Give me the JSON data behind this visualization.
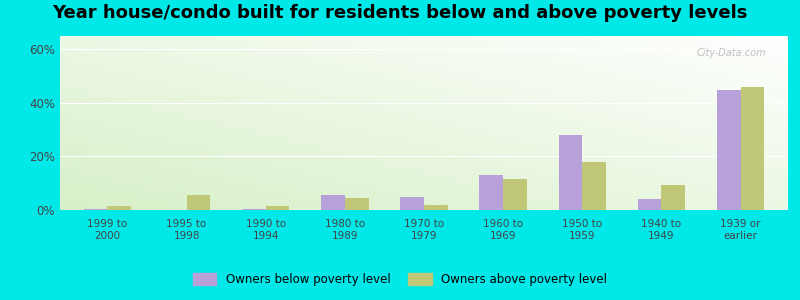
{
  "title": "Year house/condo built for residents below and above poverty levels",
  "categories": [
    "1999 to\n2000",
    "1995 to\n1998",
    "1990 to\n1994",
    "1980 to\n1989",
    "1970 to\n1979",
    "1960 to\n1969",
    "1950 to\n1959",
    "1940 to\n1949",
    "1939 or\nearlier"
  ],
  "below_poverty": [
    0.5,
    0.0,
    0.5,
    5.5,
    5.0,
    13.0,
    28.0,
    4.0,
    45.0
  ],
  "above_poverty": [
    1.5,
    5.5,
    1.5,
    4.5,
    2.0,
    11.5,
    18.0,
    9.5,
    46.0
  ],
  "below_color": "#b8a0d8",
  "above_color": "#c0c878",
  "ylim": [
    0,
    65
  ],
  "yticks": [
    0,
    20,
    40,
    60
  ],
  "ytick_labels": [
    "0%",
    "20%",
    "40%",
    "60%"
  ],
  "outer_background": "#00e8e8",
  "title_fontsize": 13,
  "legend_below": "Owners below poverty level",
  "legend_above": "Owners above poverty level",
  "bar_width": 0.3
}
